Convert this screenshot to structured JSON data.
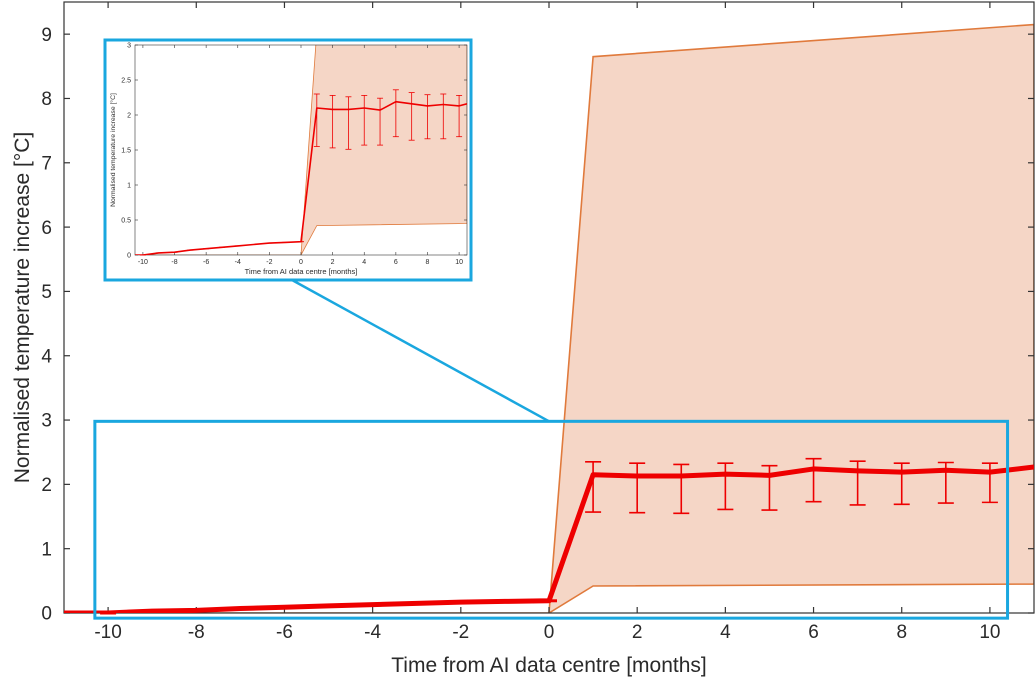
{
  "chart_data": [
    {
      "type": "line",
      "title": "",
      "xlabel": "Time from AI data centre [months]",
      "ylabel": "Normalised temperature increase [°C]",
      "xlim": [
        -11,
        11
      ],
      "ylim": [
        0,
        9.5
      ],
      "x_ticks": [
        -10,
        -8,
        -6,
        -4,
        -2,
        0,
        2,
        4,
        6,
        8,
        10
      ],
      "y_ticks": [
        0,
        1,
        2,
        3,
        4,
        5,
        6,
        7,
        8,
        9
      ],
      "grid": false,
      "series": [
        {
          "x": [
            -11,
            -10,
            -9,
            -8,
            -7,
            -6,
            -5,
            -4,
            -3,
            -2,
            -1,
            0,
            1,
            2,
            3,
            4,
            5,
            6,
            7,
            8,
            9,
            10,
            11
          ],
          "y": [
            0.0,
            0.0,
            0.03,
            0.04,
            0.07,
            0.09,
            0.11,
            0.13,
            0.15,
            0.17,
            0.18,
            0.19,
            2.15,
            2.13,
            2.13,
            2.16,
            2.14,
            2.24,
            2.21,
            2.19,
            2.22,
            2.19,
            2.27
          ],
          "error_x": [
            1,
            2,
            3,
            4,
            5,
            6,
            7,
            8,
            9,
            10
          ],
          "error_low": [
            1.57,
            1.56,
            1.55,
            1.61,
            1.6,
            1.73,
            1.68,
            1.69,
            1.71,
            1.72
          ],
          "error_high": [
            2.35,
            2.33,
            2.31,
            2.33,
            2.29,
            2.4,
            2.36,
            2.33,
            2.34,
            2.33
          ]
        }
      ],
      "band": {
        "x": [
          -11,
          0,
          1,
          11
        ],
        "upper": [
          0.0,
          0.0,
          8.65,
          9.15
        ],
        "lower": [
          0.0,
          0.0,
          0.42,
          0.45
        ]
      },
      "zoom_region": {
        "x": [
          -10.3,
          10.4
        ],
        "y": [
          -0.08,
          2.98
        ]
      },
      "colors": {
        "line": "#ee0000",
        "band_fill": "#f5d6c6",
        "band_edge": "#e07a3c",
        "highlight": "#1aa7df",
        "axis": "#333333"
      }
    },
    {
      "type": "line",
      "title": "",
      "xlabel": "Time from AI data centre [months]",
      "ylabel": "Normalised temperature increase [°C]",
      "xlim": [
        -10.5,
        10.5
      ],
      "ylim": [
        0,
        3
      ],
      "x_ticks": [
        -10,
        -8,
        -6,
        -4,
        -2,
        0,
        2,
        4,
        6,
        8,
        10
      ],
      "y_ticks": [
        0,
        0.5,
        1,
        1.5,
        2,
        2.5,
        3
      ],
      "grid": false,
      "series": [
        {
          "x": [
            -10.5,
            -10,
            -9,
            -8,
            -7,
            -6,
            -5,
            -4,
            -3,
            -2,
            -1,
            0,
            1,
            2,
            3,
            4,
            5,
            6,
            7,
            8,
            9,
            10,
            10.5
          ],
          "y": [
            0.0,
            0.0,
            0.03,
            0.04,
            0.07,
            0.09,
            0.11,
            0.13,
            0.15,
            0.17,
            0.18,
            0.19,
            2.1,
            2.08,
            2.08,
            2.1,
            2.07,
            2.19,
            2.16,
            2.13,
            2.15,
            2.13,
            2.16
          ],
          "error_x": [
            1,
            2,
            3,
            4,
            5,
            6,
            7,
            8,
            9,
            10
          ],
          "error_low": [
            1.55,
            1.53,
            1.51,
            1.57,
            1.57,
            1.69,
            1.64,
            1.66,
            1.66,
            1.69
          ],
          "error_high": [
            2.3,
            2.28,
            2.26,
            2.28,
            2.24,
            2.36,
            2.32,
            2.29,
            2.3,
            2.28
          ]
        }
      ],
      "band": {
        "x": [
          -10.5,
          0,
          1,
          10.5
        ],
        "upper": [
          0.0,
          0.0,
          3.2,
          3.2
        ],
        "lower": [
          0.0,
          0.0,
          0.42,
          0.45
        ]
      },
      "colors": {
        "line": "#ee0000",
        "band_fill": "#f5d6c6",
        "band_edge": "#e07a3c",
        "highlight": "#1aa7df",
        "axis": "#333333"
      }
    }
  ]
}
